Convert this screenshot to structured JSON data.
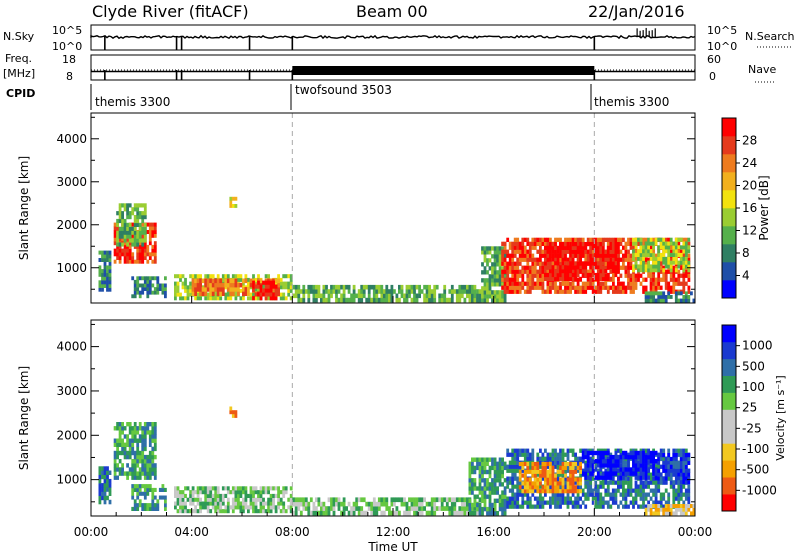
{
  "header": {
    "title": "Clyde River (fitACF)",
    "beam": "Beam 00",
    "date": "22/Jan/2016"
  },
  "strips": {
    "nsky_label": "N.Sky",
    "nsky_ticks": [
      "10^5",
      "10^0"
    ],
    "nsearch_label": "N.Search",
    "nsearch_ticks": [
      "10^5",
      "10^0"
    ],
    "freq_label": "Freq.",
    "freq_unit": "[MHz]",
    "freq_ticks": [
      "18",
      "8"
    ],
    "nave_label": "Nave",
    "nave_ticks": [
      "60",
      "0"
    ],
    "cpid_label": "CPID",
    "cpid_segments": [
      {
        "name": "themis 3300",
        "start": 0,
        "end": 8
      },
      {
        "name": "twofsound 3503",
        "start": 8,
        "end": 20
      },
      {
        "name": "themis 3300",
        "start": 20,
        "end": 24
      }
    ]
  },
  "chart_data": [
    {
      "type": "heatmap",
      "ylabel": "Slant Range [km]",
      "xlim": [
        0,
        24
      ],
      "ylim": [
        180,
        4600
      ],
      "yticks": [
        "1000",
        "2000",
        "3000",
        "4000"
      ],
      "x_tick_labels": [
        "00:00",
        "04:00",
        "08:00",
        "12:00",
        "16:00",
        "20:00",
        "00:00"
      ],
      "colorbar_label": "Power [dB]",
      "colorbar_ticks": [
        "28",
        "24",
        "20",
        "16",
        "12",
        "8",
        "4"
      ],
      "colors": [
        "#0000ff",
        "#1f4fa8",
        "#2f7f63",
        "#55b04b",
        "#9acd32",
        "#f2e20f",
        "#f2b01e",
        "#ee7b1e",
        "#e53a1c",
        "#ff0000"
      ],
      "regions": [
        {
          "t0": 0.3,
          "t1": 0.8,
          "r0": 450,
          "r1": 1400,
          "level": 2
        },
        {
          "t0": 0.9,
          "t1": 2.6,
          "r0": 1100,
          "r1": 2050,
          "level": 8
        },
        {
          "t0": 1.0,
          "t1": 2.2,
          "r0": 1500,
          "r1": 2500,
          "level": 3
        },
        {
          "t0": 1.6,
          "t1": 3.0,
          "r0": 300,
          "r1": 800,
          "level": 2
        },
        {
          "t0": 3.3,
          "t1": 8.0,
          "r0": 250,
          "r1": 850,
          "level": 4
        },
        {
          "t0": 4.0,
          "t1": 7.5,
          "r0": 350,
          "r1": 750,
          "level": 7
        },
        {
          "t0": 6.4,
          "t1": 7.4,
          "r0": 250,
          "r1": 700,
          "level": 9
        },
        {
          "t0": 5.5,
          "t1": 5.8,
          "r0": 2400,
          "r1": 2650,
          "level": 5
        },
        {
          "t0": 8.0,
          "t1": 15.5,
          "r0": 200,
          "r1": 600,
          "level": 3
        },
        {
          "t0": 15.5,
          "t1": 16.5,
          "r0": 200,
          "r1": 1500,
          "level": 3
        },
        {
          "t0": 16.3,
          "t1": 23.8,
          "r0": 400,
          "r1": 1700,
          "level": 8
        },
        {
          "t0": 18.0,
          "t1": 21.0,
          "r0": 700,
          "r1": 1600,
          "level": 9
        },
        {
          "t0": 21.5,
          "t1": 23.8,
          "r0": 900,
          "r1": 1700,
          "level": 4
        },
        {
          "t0": 22.0,
          "t1": 24.0,
          "r0": 200,
          "r1": 450,
          "level": 2
        }
      ]
    },
    {
      "type": "heatmap",
      "ylabel": "Slant Range [km]",
      "xlabel": "Time UT",
      "xlim": [
        0,
        24
      ],
      "ylim": [
        180,
        4600
      ],
      "yticks": [
        "1000",
        "2000",
        "3000",
        "4000"
      ],
      "x_tick_labels": [
        "00:00",
        "04:00",
        "08:00",
        "12:00",
        "16:00",
        "20:00",
        "00:00"
      ],
      "colorbar_label": "Velocity [m s⁻¹]",
      "colorbar_ticks": [
        "1000",
        "500",
        "100",
        "25",
        "-25",
        "-100",
        "-500",
        "-1000"
      ],
      "colors": [
        "#ff0000",
        "#ee5a14",
        "#f5a000",
        "#f2c820",
        "#c8c8c8",
        "#c8c8c8",
        "#66c840",
        "#2f9a55",
        "#2f6fa8",
        "#1a3ad0",
        "#0000ff"
      ],
      "regions": [
        {
          "t0": 0.3,
          "t1": 0.8,
          "r0": 450,
          "r1": 1300,
          "level": 8
        },
        {
          "t0": 0.9,
          "t1": 2.6,
          "r0": 1000,
          "r1": 2300,
          "level": 7
        },
        {
          "t0": 1.6,
          "t1": 3.0,
          "r0": 300,
          "r1": 900,
          "level": 7
        },
        {
          "t0": 3.3,
          "t1": 8.0,
          "r0": 250,
          "r1": 850,
          "level": 6
        },
        {
          "t0": 5.5,
          "t1": 5.8,
          "r0": 2400,
          "r1": 2650,
          "level": 2
        },
        {
          "t0": 8.0,
          "t1": 15.5,
          "r0": 200,
          "r1": 600,
          "level": 6
        },
        {
          "t0": 15.0,
          "t1": 16.5,
          "r0": 200,
          "r1": 1500,
          "level": 7
        },
        {
          "t0": 16.5,
          "t1": 23.8,
          "r0": 350,
          "r1": 1700,
          "level": 8
        },
        {
          "t0": 19.5,
          "t1": 22.5,
          "r0": 1000,
          "r1": 1650,
          "level": 10
        },
        {
          "t0": 17.0,
          "t1": 19.5,
          "r0": 700,
          "r1": 1400,
          "level": 2
        },
        {
          "t0": 22.5,
          "t1": 23.8,
          "r0": 900,
          "r1": 1600,
          "level": 9
        },
        {
          "t0": 22.0,
          "t1": 24.0,
          "r0": 200,
          "r1": 450,
          "level": 3
        }
      ]
    }
  ]
}
